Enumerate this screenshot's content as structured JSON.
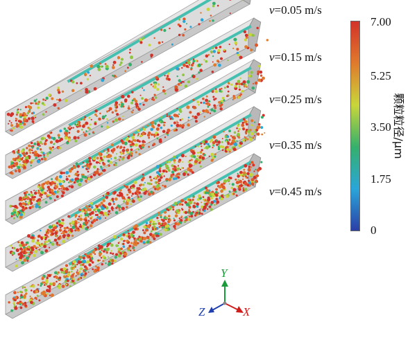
{
  "speed_labels": [
    {
      "var": "v",
      "value": "=0.05 m/s"
    },
    {
      "var": "v",
      "value": "=0.15 m/s"
    },
    {
      "var": "v",
      "value": "=0.25 m/s"
    },
    {
      "var": "v",
      "value": "=0.35 m/s"
    },
    {
      "var": "v",
      "value": "=0.45 m/s"
    }
  ],
  "colorbar": {
    "title": "颗粒粒径/μm",
    "ticks": [
      "7.00",
      "5.25",
      "3.50",
      "1.75",
      "0"
    ],
    "colors": [
      "#2b3fa6",
      "#2aa6d9",
      "#35b06c",
      "#c9d63a",
      "#e07a2c",
      "#d2322a"
    ]
  },
  "axes": {
    "y_label": "Y",
    "z_label": "Z",
    "x_label": "X",
    "y_color": "#1a9a3a",
    "z_color": "#1f3fb0",
    "x_color": "#d21c1c"
  }
}
